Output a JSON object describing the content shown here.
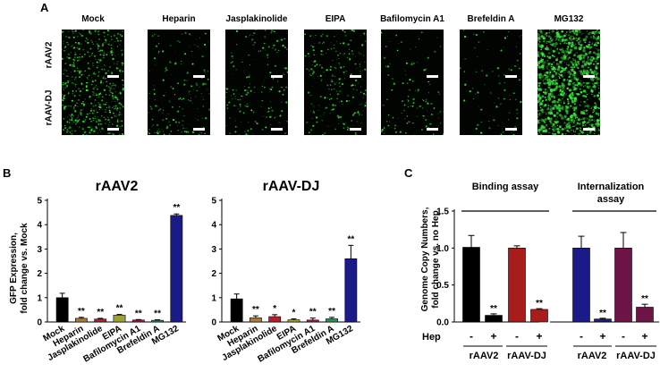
{
  "panel_a": {
    "letter": "A",
    "conditions": [
      "Mock",
      "Heparin",
      "Jasplakinolide",
      "EIPA",
      "Bafilomycin A1",
      "Brefeldin A",
      "MG132"
    ],
    "rows": [
      "rAAV2",
      "rAAV-DJ"
    ],
    "gfp_color": "#39e63a",
    "signal_level": [
      [
        0.45,
        0.07,
        0.1,
        0.22,
        0.04,
        0.03,
        1.0
      ],
      [
        0.65,
        0.18,
        0.16,
        0.18,
        0.12,
        0.05,
        1.0
      ]
    ]
  },
  "panel_b": {
    "letter": "B",
    "ylabel_line1": "GFP Expression,",
    "ylabel_line2": "fold change vs. Mock",
    "chart_data": [
      {
        "type": "bar",
        "title": "rAAV2",
        "categories": [
          "Mock",
          "Heparin",
          "Jasplakinolide",
          "EIPA",
          "Bafilomycin A1",
          "Brefeldin A",
          "MG132"
        ],
        "values": [
          1.0,
          0.15,
          0.12,
          0.28,
          0.08,
          0.07,
          4.38
        ],
        "errors": [
          0.18,
          0.04,
          0.03,
          0.03,
          0.02,
          0.02,
          0.06
        ],
        "significance": [
          "",
          "**",
          "**",
          "**",
          "**",
          "**",
          "**"
        ],
        "colors": [
          "#000000",
          "#a87a3c",
          "#b51e2e",
          "#9fa032",
          "#9f2040",
          "#1f9a4a",
          "#1a1a88"
        ],
        "ylim": [
          0,
          5
        ],
        "yticks": [
          0,
          1,
          2,
          3,
          4,
          5
        ]
      },
      {
        "type": "bar",
        "title": "rAAV-DJ",
        "categories": [
          "Mock",
          "Heparin",
          "Jasplakinolide",
          "EIPA",
          "Bafilomycin A1",
          "Brefeldin A",
          "MG132"
        ],
        "values": [
          0.95,
          0.17,
          0.22,
          0.09,
          0.08,
          0.13,
          2.6
        ],
        "errors": [
          0.2,
          0.08,
          0.08,
          0.04,
          0.08,
          0.06,
          0.55
        ],
        "significance": [
          "",
          "**",
          "*",
          "*",
          "**",
          "**",
          "**"
        ],
        "colors": [
          "#000000",
          "#a87a3c",
          "#b51e2e",
          "#9fa032",
          "#9f2040",
          "#1f9a4a",
          "#1a1a88"
        ],
        "ylim": [
          0,
          5
        ],
        "yticks": [
          0,
          1,
          2,
          3,
          4,
          5
        ]
      }
    ]
  },
  "panel_c": {
    "letter": "C",
    "ylabel_line1": "Genome Copy Numbers,",
    "ylabel_line2": "fold change vs. no Hep",
    "hep_label": "Hep",
    "group_titles": [
      "Binding assay",
      "Internalization",
      "assay"
    ],
    "chart_data": {
      "type": "bar",
      "ylim": [
        0,
        1.5
      ],
      "yticks": [
        "0.0",
        "0.5",
        "1.0",
        "1.5"
      ],
      "x": [
        "-",
        "+",
        "-",
        "+",
        "-",
        "+",
        "-",
        "+"
      ],
      "groups": [
        "rAAV2",
        "rAAV-DJ",
        "rAAV2",
        "rAAV-DJ"
      ],
      "values": [
        1.01,
        0.09,
        1.0,
        0.17,
        1.0,
        0.04,
        1.0,
        0.2
      ],
      "errors": [
        0.16,
        0.02,
        0.03,
        0.01,
        0.16,
        0.01,
        0.21,
        0.04
      ],
      "significance": [
        "",
        "**",
        "",
        "**",
        "",
        "**",
        "",
        "**"
      ],
      "colors": [
        "#000000",
        "#000000",
        "#a81c1c",
        "#a81c1c",
        "#1a1a88",
        "#1a1a88",
        "#6e1446",
        "#6e1446"
      ]
    }
  }
}
